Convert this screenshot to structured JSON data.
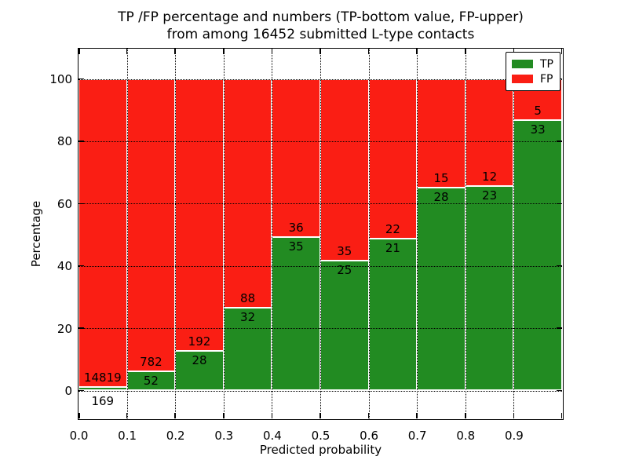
{
  "title": {
    "line1": "TP /FP percentage and numbers (TP-bottom value, FP-upper)",
    "line2": "from among 16452 submitted L-type contacts"
  },
  "chart_data": {
    "type": "bar",
    "stacked": true,
    "title": "TP /FP percentage and numbers (TP-bottom value, FP-upper)\nfrom among 16452 submitted L-type contacts",
    "xlabel": "Predicted probability",
    "ylabel": "Percentage",
    "xlim": [
      0.0,
      1.0
    ],
    "ylim": [
      -10,
      110
    ],
    "xticks": [
      "0.0",
      "0.1",
      "0.2",
      "0.3",
      "0.4",
      "0.5",
      "0.6",
      "0.7",
      "0.8",
      "0.9"
    ],
    "yticks": [
      "0",
      "20",
      "40",
      "60",
      "80",
      "100"
    ],
    "ytick_values": [
      0,
      20,
      40,
      60,
      80,
      100
    ],
    "grid": true,
    "bin_width": 0.1,
    "bin_starts": [
      0.0,
      0.1,
      0.2,
      0.3,
      0.4,
      0.5,
      0.6,
      0.7,
      0.8,
      0.9
    ],
    "series": [
      {
        "name": "TP",
        "color": "#228b22",
        "counts": [
          169,
          52,
          28,
          32,
          35,
          25,
          21,
          28,
          23,
          33
        ]
      },
      {
        "name": "FP",
        "color": "#fa1e14",
        "counts": [
          14819,
          782,
          192,
          88,
          36,
          35,
          22,
          15,
          12,
          5
        ]
      }
    ],
    "tp_percent": [
      1.1,
      6.2,
      12.7,
      26.7,
      49.3,
      41.7,
      48.8,
      65.1,
      65.7,
      86.8
    ],
    "total_submitted": 16452,
    "legend": {
      "position": "upper right",
      "entries": [
        {
          "label": "TP",
          "color": "#228b22"
        },
        {
          "label": "FP",
          "color": "#fa1e14"
        }
      ]
    }
  }
}
